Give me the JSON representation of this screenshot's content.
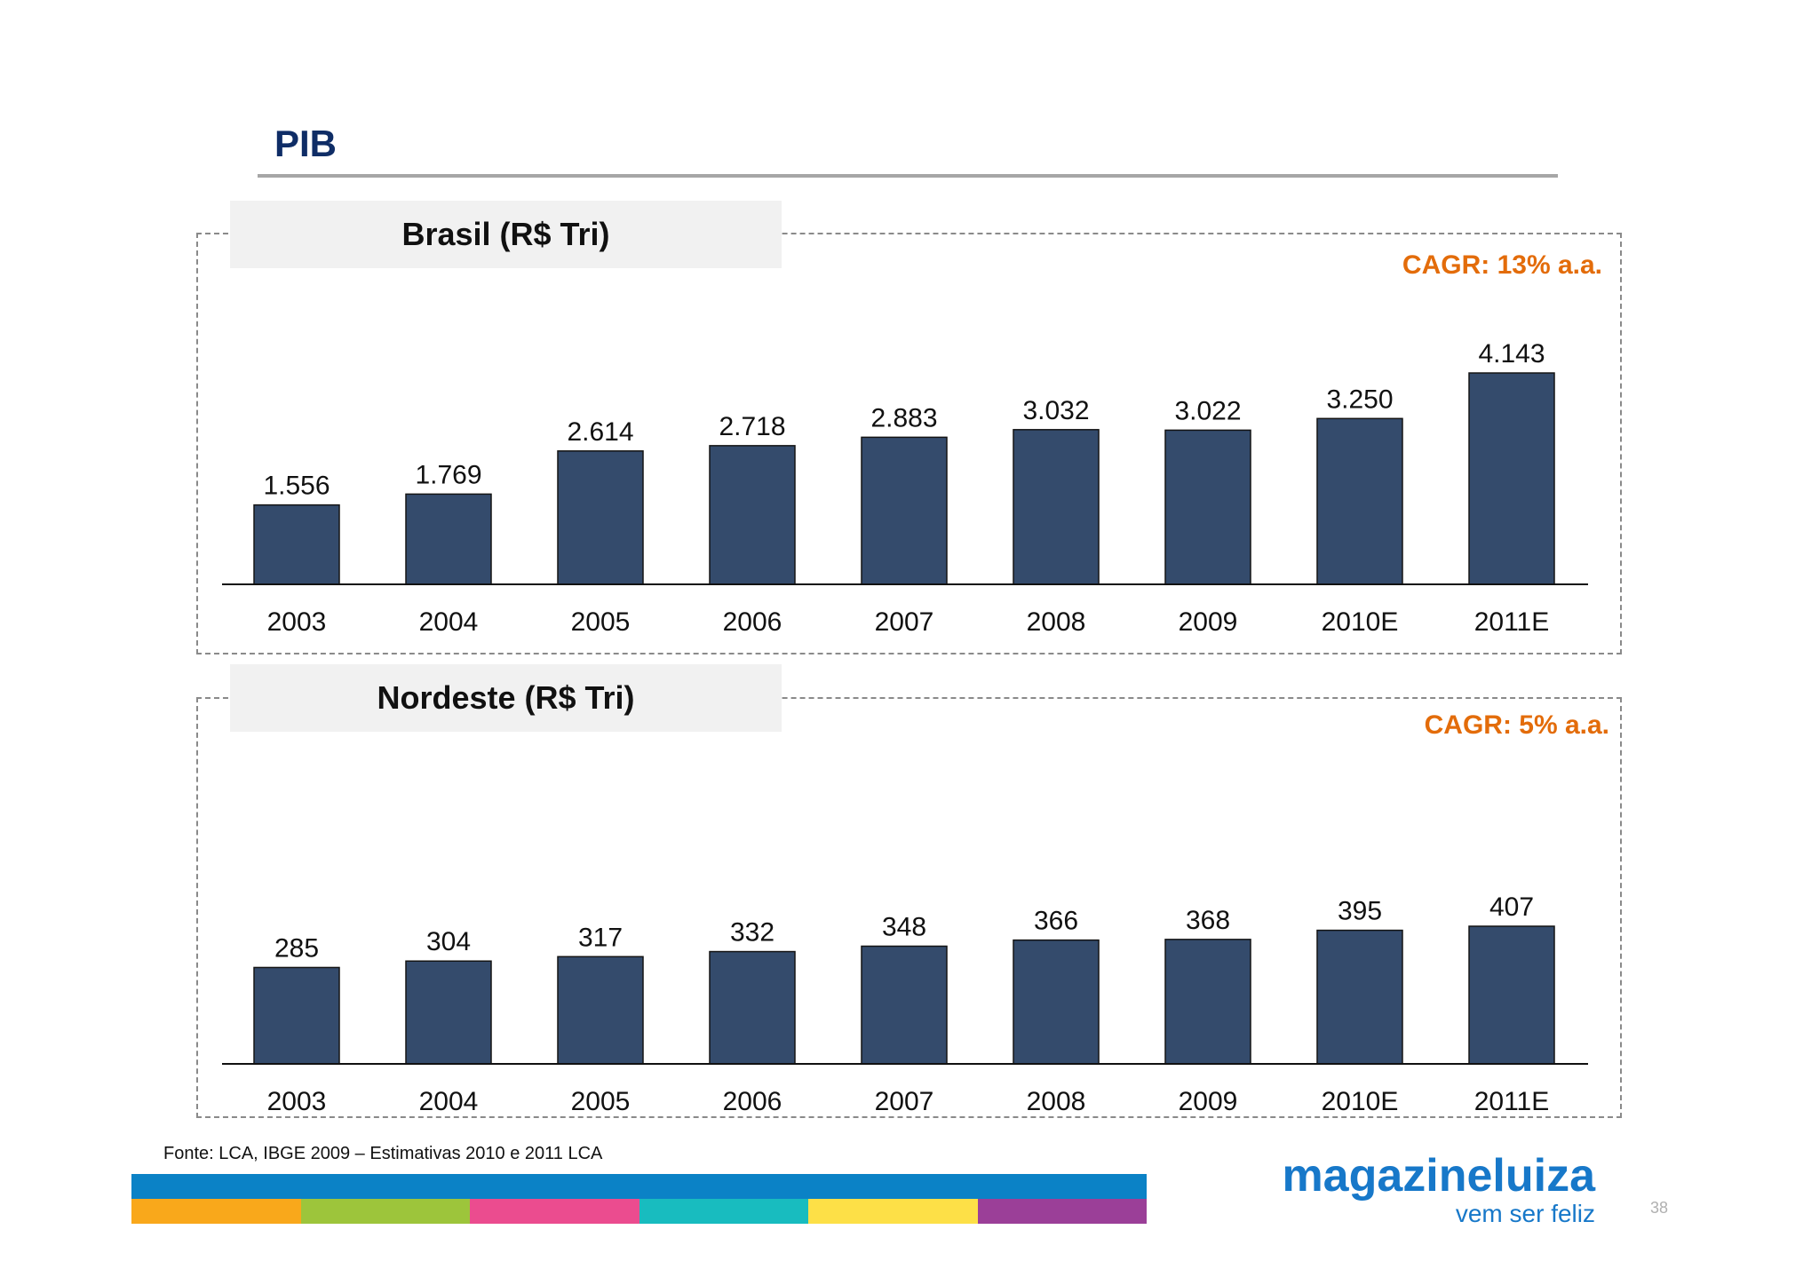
{
  "slide": {
    "title": "PIB",
    "source": "Fonte: LCA, IBGE 2009 – Estimativas 2010 e 2011 LCA",
    "page_number": "38"
  },
  "logo": {
    "name": "magazineluiza",
    "tagline": "vem ser feliz"
  },
  "colors": {
    "title": "#0f2d66",
    "bar": "#344b6c",
    "cagr": "#e36c0a",
    "stripe_top": "#0b82c6",
    "stripe_segments": [
      "#f9a81b",
      "#9dc53b",
      "#eb4c8f",
      "#18bcbf",
      "#fde047",
      "#9b3f98"
    ],
    "logo": "#1778c9"
  },
  "chart_data": [
    {
      "type": "bar",
      "title": "Brasil (R$ Tri)",
      "annotation": "CAGR: 13% a.a.",
      "categories": [
        "2003",
        "2004",
        "2005",
        "2006",
        "2007",
        "2008",
        "2009",
        "2010E",
        "2011E"
      ],
      "values": [
        1.556,
        1.769,
        2.614,
        2.718,
        2.883,
        3.032,
        3.022,
        3.25,
        4.143
      ],
      "value_labels": [
        "1.556",
        "1.769",
        "2.614",
        "2.718",
        "2.883",
        "3.032",
        "3.022",
        "3.250",
        "4.143"
      ],
      "ylim": [
        0,
        4.143
      ],
      "grid": false,
      "legend": "none"
    },
    {
      "type": "bar",
      "title": "Nordeste (R$ Tri)",
      "annotation": "CAGR: 5% a.a.",
      "categories": [
        "2003",
        "2004",
        "2005",
        "2006",
        "2007",
        "2008",
        "2009",
        "2010E",
        "2011E"
      ],
      "values": [
        285,
        304,
        317,
        332,
        348,
        366,
        368,
        395,
        407
      ],
      "value_labels": [
        "285",
        "304",
        "317",
        "332",
        "348",
        "366",
        "368",
        "395",
        "407"
      ],
      "ylim": [
        0,
        407
      ],
      "grid": false,
      "legend": "none"
    }
  ]
}
